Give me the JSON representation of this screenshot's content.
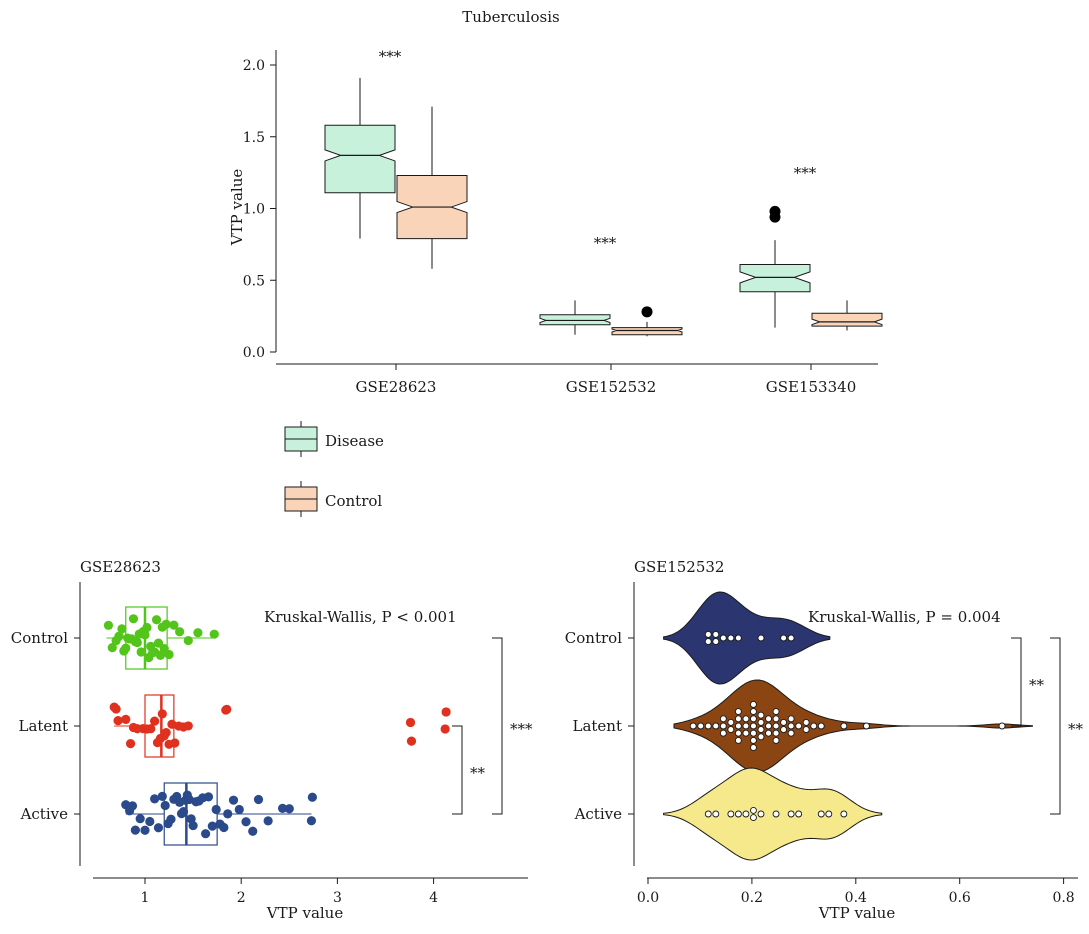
{
  "chart_data": [
    {
      "type": "box",
      "title": "Tuberculosis",
      "ylabel": "VTP value",
      "xlabel": "",
      "ylim": [
        -0.05,
        2.1
      ],
      "yticks": [
        "0.0",
        "0.5",
        "1.0",
        "1.5",
        "2.0"
      ],
      "yticks_values": [
        0,
        0.5,
        1.0,
        1.5,
        2.0
      ],
      "categories": [
        "GSE28623",
        "GSE152532",
        "GSE153340"
      ],
      "series": [
        {
          "name": "Disease",
          "color": "#c8f1dc",
          "boxes": [
            {
              "min": 0.79,
              "q1": 1.11,
              "median": 1.37,
              "q3": 1.58,
              "max": 1.91,
              "outliers": []
            },
            {
              "min": 0.12,
              "q1": 0.19,
              "median": 0.22,
              "q3": 0.26,
              "max": 0.36,
              "outliers": []
            },
            {
              "min": 0.17,
              "q1": 0.42,
              "median": 0.52,
              "q3": 0.61,
              "max": 0.78,
              "outliers": [
                0.94,
                0.98
              ]
            }
          ]
        },
        {
          "name": "Control",
          "color": "#fad4b8",
          "boxes": [
            {
              "min": 0.58,
              "q1": 0.79,
              "median": 1.01,
              "q3": 1.23,
              "max": 1.71,
              "outliers": []
            },
            {
              "min": 0.11,
              "q1": 0.12,
              "median": 0.15,
              "q3": 0.17,
              "max": 0.21,
              "outliers": [
                0.28
              ]
            },
            {
              "min": 0.15,
              "q1": 0.18,
              "median": 0.21,
              "q3": 0.27,
              "max": 0.36,
              "outliers": []
            }
          ]
        }
      ],
      "annotations": [
        {
          "text": "***",
          "category": "GSE28623",
          "y": 2.08
        },
        {
          "text": "***",
          "category": "GSE152532",
          "y": 0.78
        },
        {
          "text": "***",
          "category": "GSE153340",
          "y": 1.27
        }
      ],
      "legend": {
        "placement": "bottom-left",
        "entries": [
          "Disease",
          "Control"
        ]
      }
    },
    {
      "type": "box_strip",
      "title": "GSE28623",
      "xlabel": "VTP value",
      "xlim": [
        0.45,
        4.85
      ],
      "xticks": [
        "1",
        "2",
        "3",
        "4"
      ],
      "xticks_values": [
        1,
        2,
        3,
        4
      ],
      "categories": [
        "Control",
        "Latent",
        "Active"
      ],
      "annotation": "Kruskal-Wallis, P < 0.001",
      "series": [
        {
          "name": "Control",
          "color": "#52c41a",
          "box": {
            "min": 0.6,
            "q1": 0.8,
            "median": 1.0,
            "q3": 1.23,
            "max": 1.72
          },
          "points": [
            0.62,
            0.66,
            0.7,
            0.73,
            0.76,
            0.78,
            0.8,
            0.82,
            0.84,
            0.86,
            0.88,
            0.9,
            0.92,
            0.94,
            0.96,
            0.98,
            1.0,
            1.02,
            1.04,
            1.06,
            1.08,
            1.1,
            1.12,
            1.14,
            1.16,
            1.18,
            1.2,
            1.22,
            1.25,
            1.3,
            1.36,
            1.45,
            1.55,
            1.72
          ]
        },
        {
          "name": "Latent",
          "color": "#e0301e",
          "box": {
            "min": 0.68,
            "q1": 1.0,
            "median": 1.17,
            "q3": 1.3,
            "max": 1.48
          },
          "points": [
            0.68,
            0.7,
            0.72,
            0.8,
            0.85,
            0.88,
            0.92,
            0.98,
            1.02,
            1.06,
            1.1,
            1.13,
            1.16,
            1.18,
            1.2,
            1.22,
            1.25,
            1.28,
            1.31,
            1.35,
            1.4,
            1.45,
            1.84,
            1.85,
            3.76,
            3.77,
            4.12,
            4.13
          ]
        },
        {
          "name": "Active",
          "color": "#2b4a8c",
          "box": {
            "min": 0.8,
            "q1": 1.2,
            "median": 1.43,
            "q3": 1.75,
            "max": 2.73
          },
          "points": [
            0.8,
            0.84,
            0.87,
            0.9,
            0.95,
            1.0,
            1.05,
            1.1,
            1.14,
            1.18,
            1.21,
            1.24,
            1.27,
            1.3,
            1.33,
            1.36,
            1.38,
            1.4,
            1.42,
            1.44,
            1.46,
            1.48,
            1.5,
            1.53,
            1.56,
            1.6,
            1.63,
            1.66,
            1.7,
            1.74,
            1.78,
            1.82,
            1.86,
            1.92,
            1.98,
            2.05,
            2.12,
            2.18,
            2.28,
            2.43,
            2.5,
            2.73,
            2.74
          ]
        }
      ],
      "comparisons": [
        {
          "groups": [
            "Control",
            "Active"
          ],
          "text": "***"
        },
        {
          "groups": [
            "Latent",
            "Active"
          ],
          "text": "**"
        }
      ]
    },
    {
      "type": "violin_dot",
      "title": "GSE152532",
      "xlabel": "VTP value",
      "xlim": [
        -0.01,
        0.82
      ],
      "xticks": [
        "0.0",
        "0.2",
        "0.4",
        "0.6",
        "0.8"
      ],
      "xticks_values": [
        0,
        0.2,
        0.4,
        0.6,
        0.8
      ],
      "categories": [
        "Control",
        "Latent",
        "Active"
      ],
      "annotation": "Kruskal-Wallis, P = 0.004",
      "series": [
        {
          "name": "Control",
          "color": "#2b3570",
          "range": [
            0.03,
            0.35
          ],
          "peak": 0.13,
          "points": [
            0.11,
            0.12,
            0.13,
            0.13,
            0.15,
            0.16,
            0.18,
            0.22,
            0.26,
            0.28
          ]
        },
        {
          "name": "Latent",
          "color": "#8b4513",
          "range": [
            0.05,
            0.74
          ],
          "peak": 0.22,
          "points": [
            0.08,
            0.1,
            0.12,
            0.13,
            0.14,
            0.15,
            0.15,
            0.16,
            0.16,
            0.17,
            0.17,
            0.18,
            0.18,
            0.18,
            0.19,
            0.19,
            0.19,
            0.2,
            0.2,
            0.2,
            0.2,
            0.21,
            0.21,
            0.21,
            0.22,
            0.22,
            0.22,
            0.22,
            0.23,
            0.23,
            0.23,
            0.24,
            0.24,
            0.24,
            0.25,
            0.25,
            0.26,
            0.26,
            0.27,
            0.27,
            0.28,
            0.29,
            0.3,
            0.31,
            0.32,
            0.34,
            0.37,
            0.42,
            0.68
          ]
        },
        {
          "name": "Active",
          "color": "#f5e98c",
          "range": [
            0.03,
            0.45
          ],
          "peak": 0.2,
          "points": [
            0.11,
            0.13,
            0.16,
            0.18,
            0.19,
            0.2,
            0.21,
            0.22,
            0.25,
            0.27,
            0.29,
            0.34,
            0.35,
            0.37
          ]
        }
      ],
      "comparisons": [
        {
          "groups": [
            "Control",
            "Latent"
          ],
          "text": "**"
        },
        {
          "groups": [
            "Control",
            "Active"
          ],
          "text": "**"
        }
      ]
    }
  ]
}
